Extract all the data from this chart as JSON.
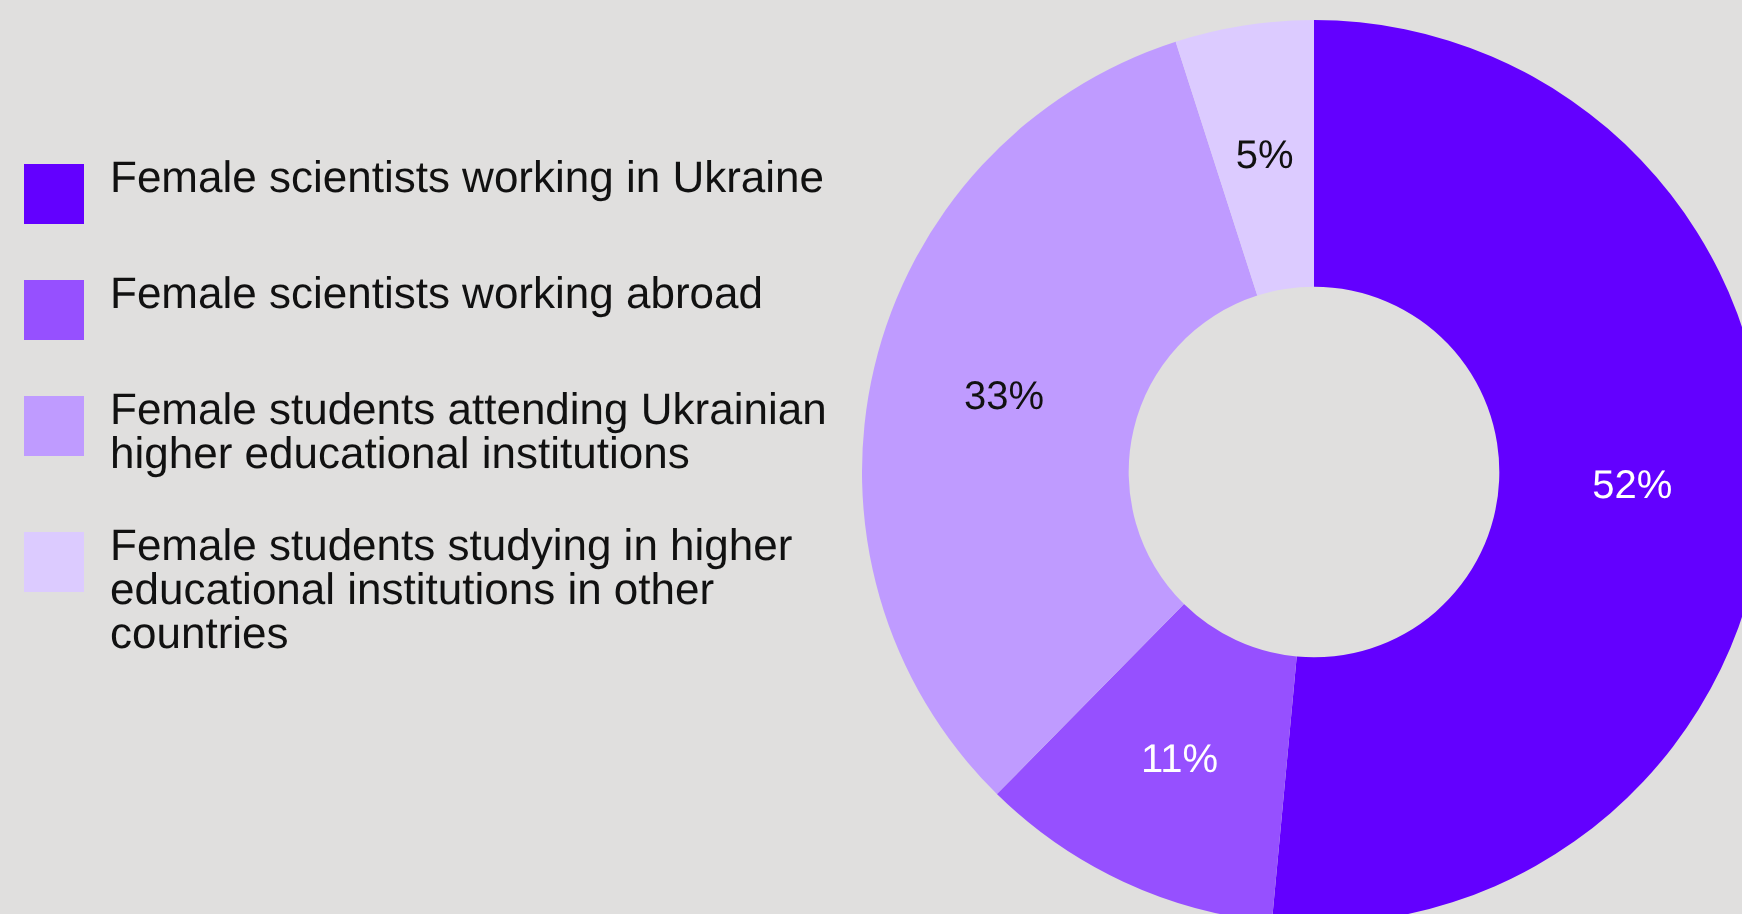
{
  "chart_data": {
    "type": "donut",
    "categories": [
      "Female scientists working in Ukraine",
      "Female scientists working abroad",
      "Female students attending Ukrainian higher educational institutions",
      "Female students studying in higher educational institutions in other countries"
    ],
    "values": [
      52,
      11,
      33,
      5
    ],
    "colors": [
      "#6300ff",
      "#9650ff",
      "#bf9bff",
      "#dccbff"
    ],
    "value_labels": [
      "52%",
      "11%",
      "33%",
      "5%"
    ],
    "legend": "left"
  }
}
